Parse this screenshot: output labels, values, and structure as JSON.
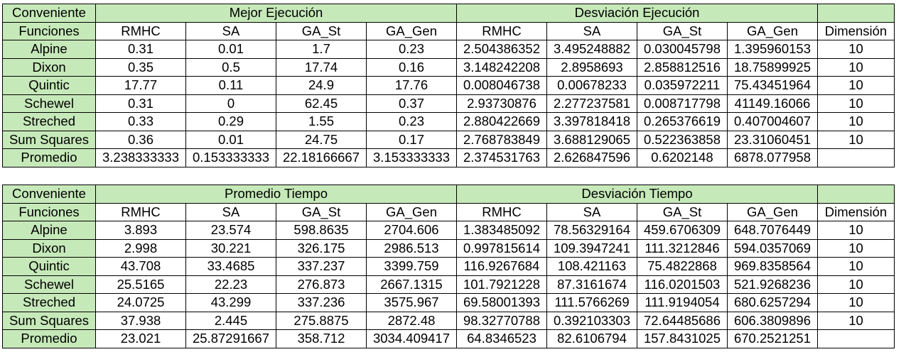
{
  "tables": [
    {
      "corner_label": "Conveniente",
      "group1_title": "Mejor Ejecución",
      "group2_title": "Desviación Ejecución",
      "row_header_label": "Funciones",
      "columns": [
        "RMHC",
        "SA",
        "GA_St",
        "GA_Gen",
        "RMHC",
        "SA",
        "GA_St",
        "GA_Gen",
        "Dimensión"
      ],
      "rows": [
        {
          "name": "Alpine",
          "values": [
            "0.31",
            "0.01",
            "1.7",
            "0.23",
            "2.504386352",
            "3.495248882",
            "0.030045798",
            "1.395960153",
            "10"
          ]
        },
        {
          "name": "Dixon",
          "values": [
            "0.35",
            "0.5",
            "17.74",
            "0.16",
            "3.148242208",
            "2.8958693",
            "2.858812516",
            "18.75899925",
            "10"
          ]
        },
        {
          "name": "Quintic",
          "values": [
            "17.77",
            "0.11",
            "24.9",
            "17.76",
            "0.008046738",
            "0.00678233",
            "0.035972211",
            "75.43451964",
            "10"
          ]
        },
        {
          "name": "Schewel",
          "values": [
            "0.31",
            "0",
            "62.45",
            "0.37",
            "2.93730876",
            "2.277237581",
            "0.008717798",
            "41149.16066",
            "10"
          ]
        },
        {
          "name": "Streched",
          "values": [
            "0.33",
            "0.29",
            "1.55",
            "0.23",
            "2.880422669",
            "3.397818418",
            "0.265376619",
            "0.407004607",
            "10"
          ]
        },
        {
          "name": "Sum Squares",
          "values": [
            "0.36",
            "0.01",
            "24.75",
            "0.17",
            "2.768783849",
            "3.688129065",
            "0.522363858",
            "23.31060451",
            "10"
          ]
        },
        {
          "name": "Promedio",
          "values": [
            "3.238333333",
            "0.153333333",
            "22.18166667",
            "3.153333333",
            "2.374531763",
            "2.626847596",
            "0.6202148",
            "6878.077958",
            ""
          ]
        }
      ]
    },
    {
      "corner_label": "Conveniente",
      "group1_title": "Promedio Tiempo",
      "group2_title": "Desviación Tiempo",
      "row_header_label": "Funciones",
      "columns": [
        "RMHC",
        "SA",
        "GA_St",
        "GA_Gen",
        "RMHC",
        "SA",
        "GA_St",
        "GA_Gen",
        "Dimensión"
      ],
      "rows": [
        {
          "name": "Alpine",
          "values": [
            "3.893",
            "23.574",
            "598.8635",
            "2704.606",
            "1.383485092",
            "78.56329164",
            "459.6706309",
            "648.7076449",
            "10"
          ]
        },
        {
          "name": "Dixon",
          "values": [
            "2.998",
            "30.221",
            "326.175",
            "2986.513",
            "0.997815614",
            "109.3947241",
            "111.3212846",
            "594.0357069",
            "10"
          ]
        },
        {
          "name": "Quintic",
          "values": [
            "43.708",
            "33.4685",
            "337.237",
            "3399.759",
            "116.9267684",
            "108.421163",
            "75.4822868",
            "969.8358564",
            "10"
          ]
        },
        {
          "name": "Schewel",
          "values": [
            "25.5165",
            "22.23",
            "276.873",
            "2667.1315",
            "101.7921228",
            "87.3161674",
            "116.0201503",
            "521.9268236",
            "10"
          ]
        },
        {
          "name": "Streched",
          "values": [
            "24.0725",
            "43.299",
            "337.236",
            "3575.967",
            "69.58001393",
            "111.5766269",
            "111.9194054",
            "680.6257294",
            "10"
          ]
        },
        {
          "name": "Sum Squares",
          "values": [
            "37.938",
            "2.445",
            "275.8875",
            "2872.48",
            "98.32770788",
            "0.392103303",
            "72.64485686",
            "606.3809896",
            "10"
          ]
        },
        {
          "name": "Promedio",
          "values": [
            "23.021",
            "25.87291667",
            "358.712",
            "3034.409417",
            "64.8346523",
            "82.6106794",
            "157.8431025",
            "670.2521251",
            ""
          ]
        }
      ]
    }
  ]
}
